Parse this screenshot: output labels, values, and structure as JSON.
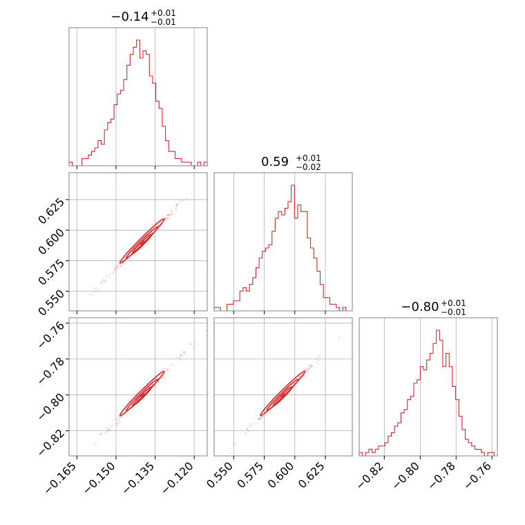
{
  "chart_data": {
    "type": "corner",
    "color": "#d62728",
    "parameters": [
      {
        "title_main": "−0.14",
        "title_plus": "+0.01",
        "title_minus": "−0.01",
        "range": [
          -0.168,
          -0.115
        ],
        "median": -0.14
      },
      {
        "title_main": "0.59",
        "title_plus": "+0.01",
        "title_minus": "−0.02",
        "range": [
          0.534,
          0.647
        ],
        "median": 0.59
      },
      {
        "title_main": "−0.80",
        "title_plus": "+0.01",
        "title_minus": "−0.01",
        "range": [
          -0.834,
          -0.757
        ],
        "median": -0.8
      }
    ],
    "ticks": [
      {
        "values": [
          -0.165,
          -0.15,
          -0.135,
          -0.12
        ],
        "labels": [
          "−0.165",
          "−0.150",
          "−0.135",
          "−0.120"
        ]
      },
      {
        "values": [
          0.55,
          0.575,
          0.6,
          0.625
        ],
        "labels": [
          "0.550",
          "0.575",
          "0.600",
          "0.625"
        ]
      },
      {
        "values": [
          -0.82,
          -0.8,
          -0.78,
          -0.76
        ],
        "labels": [
          "−0.82",
          "−0.80",
          "−0.78",
          "−0.76"
        ]
      }
    ],
    "histograms": [
      [
        1,
        0,
        0,
        0,
        2,
        2,
        3,
        4,
        5,
        7,
        6,
        10,
        12,
        13,
        17,
        20,
        21,
        24,
        28,
        31,
        33,
        35,
        30,
        32,
        31,
        25,
        23,
        18,
        16,
        11,
        7,
        4,
        4,
        2,
        2,
        1,
        1,
        1,
        0,
        0,
        1,
        0,
        1
      ],
      [
        1,
        1,
        0,
        0,
        2,
        2,
        3,
        3,
        6,
        7,
        6,
        8,
        10,
        13,
        16,
        18,
        19,
        20,
        24,
        28,
        30,
        29,
        31,
        33,
        38,
        28,
        32,
        30,
        30,
        22,
        19,
        16,
        12,
        8,
        4,
        4,
        2,
        2,
        1,
        0,
        1,
        0,
        0
      ],
      [
        1,
        0,
        1,
        2,
        1,
        2,
        3,
        3,
        4,
        6,
        7,
        9,
        10,
        13,
        14,
        17,
        18,
        22,
        23,
        27,
        26,
        29,
        31,
        34,
        38,
        35,
        27,
        31,
        27,
        21,
        17,
        12,
        8,
        5,
        4,
        3,
        2,
        2,
        1,
        0,
        1,
        1,
        0
      ]
    ],
    "correlations": {
      "1-0": 0.995,
      "2-0": 0.995,
      "2-1": 0.995
    }
  }
}
